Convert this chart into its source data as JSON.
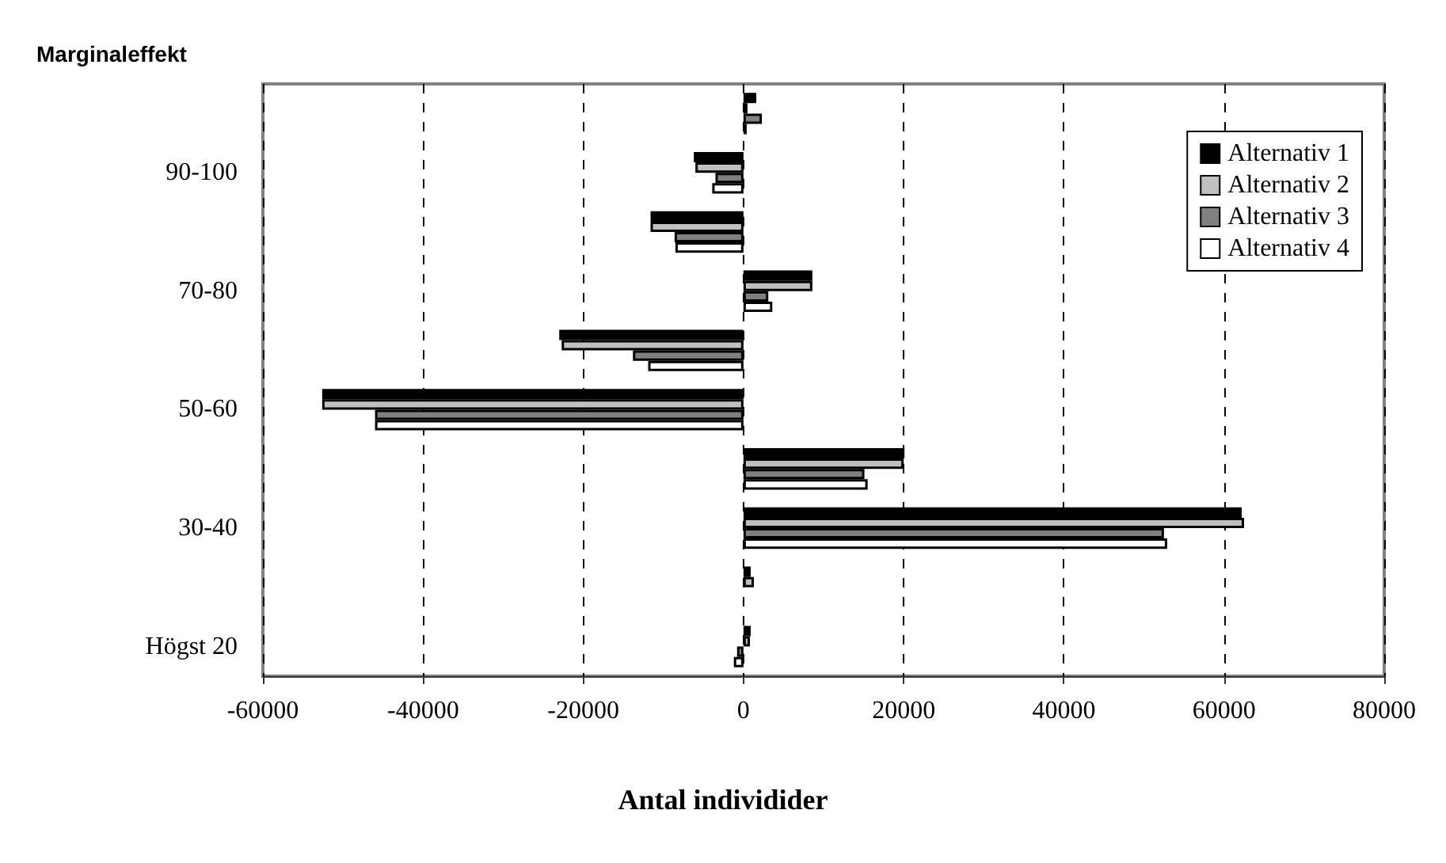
{
  "chart_data": {
    "type": "bar",
    "orientation": "horizontal",
    "ylabel": "Marginaleffekt",
    "xlabel": "Antal individider",
    "categories": [
      null,
      "90-100",
      null,
      "70-80",
      null,
      "50-60",
      null,
      "30-40",
      null,
      "Högst 20"
    ],
    "series": [
      {
        "name": "Alternativ 1",
        "color": "#000000",
        "values": [
          1600,
          -6200,
          -11600,
          8600,
          -23000,
          -52600,
          20100,
          62200,
          900,
          900
        ]
      },
      {
        "name": "Alternativ 2",
        "color": "#c0c0c0",
        "values": [
          500,
          -6000,
          -11600,
          8600,
          -22700,
          -52600,
          20000,
          62500,
          1300,
          800
        ]
      },
      {
        "name": "Alternativ 3",
        "color": "#808080",
        "values": [
          2300,
          -3500,
          -8600,
          3100,
          -13800,
          -46000,
          15100,
          52500,
          null,
          -800
        ]
      },
      {
        "name": "Alternativ 4",
        "color": "#ffffff",
        "values": [
          400,
          -3900,
          -8500,
          3600,
          -11900,
          -46000,
          15500,
          52900,
          null,
          -1200
        ]
      }
    ],
    "xlim": [
      -60000,
      80000
    ],
    "xticks": [
      -60000,
      -40000,
      -20000,
      0,
      20000,
      40000,
      60000,
      80000
    ],
    "grid": "x",
    "legend": "top right"
  }
}
